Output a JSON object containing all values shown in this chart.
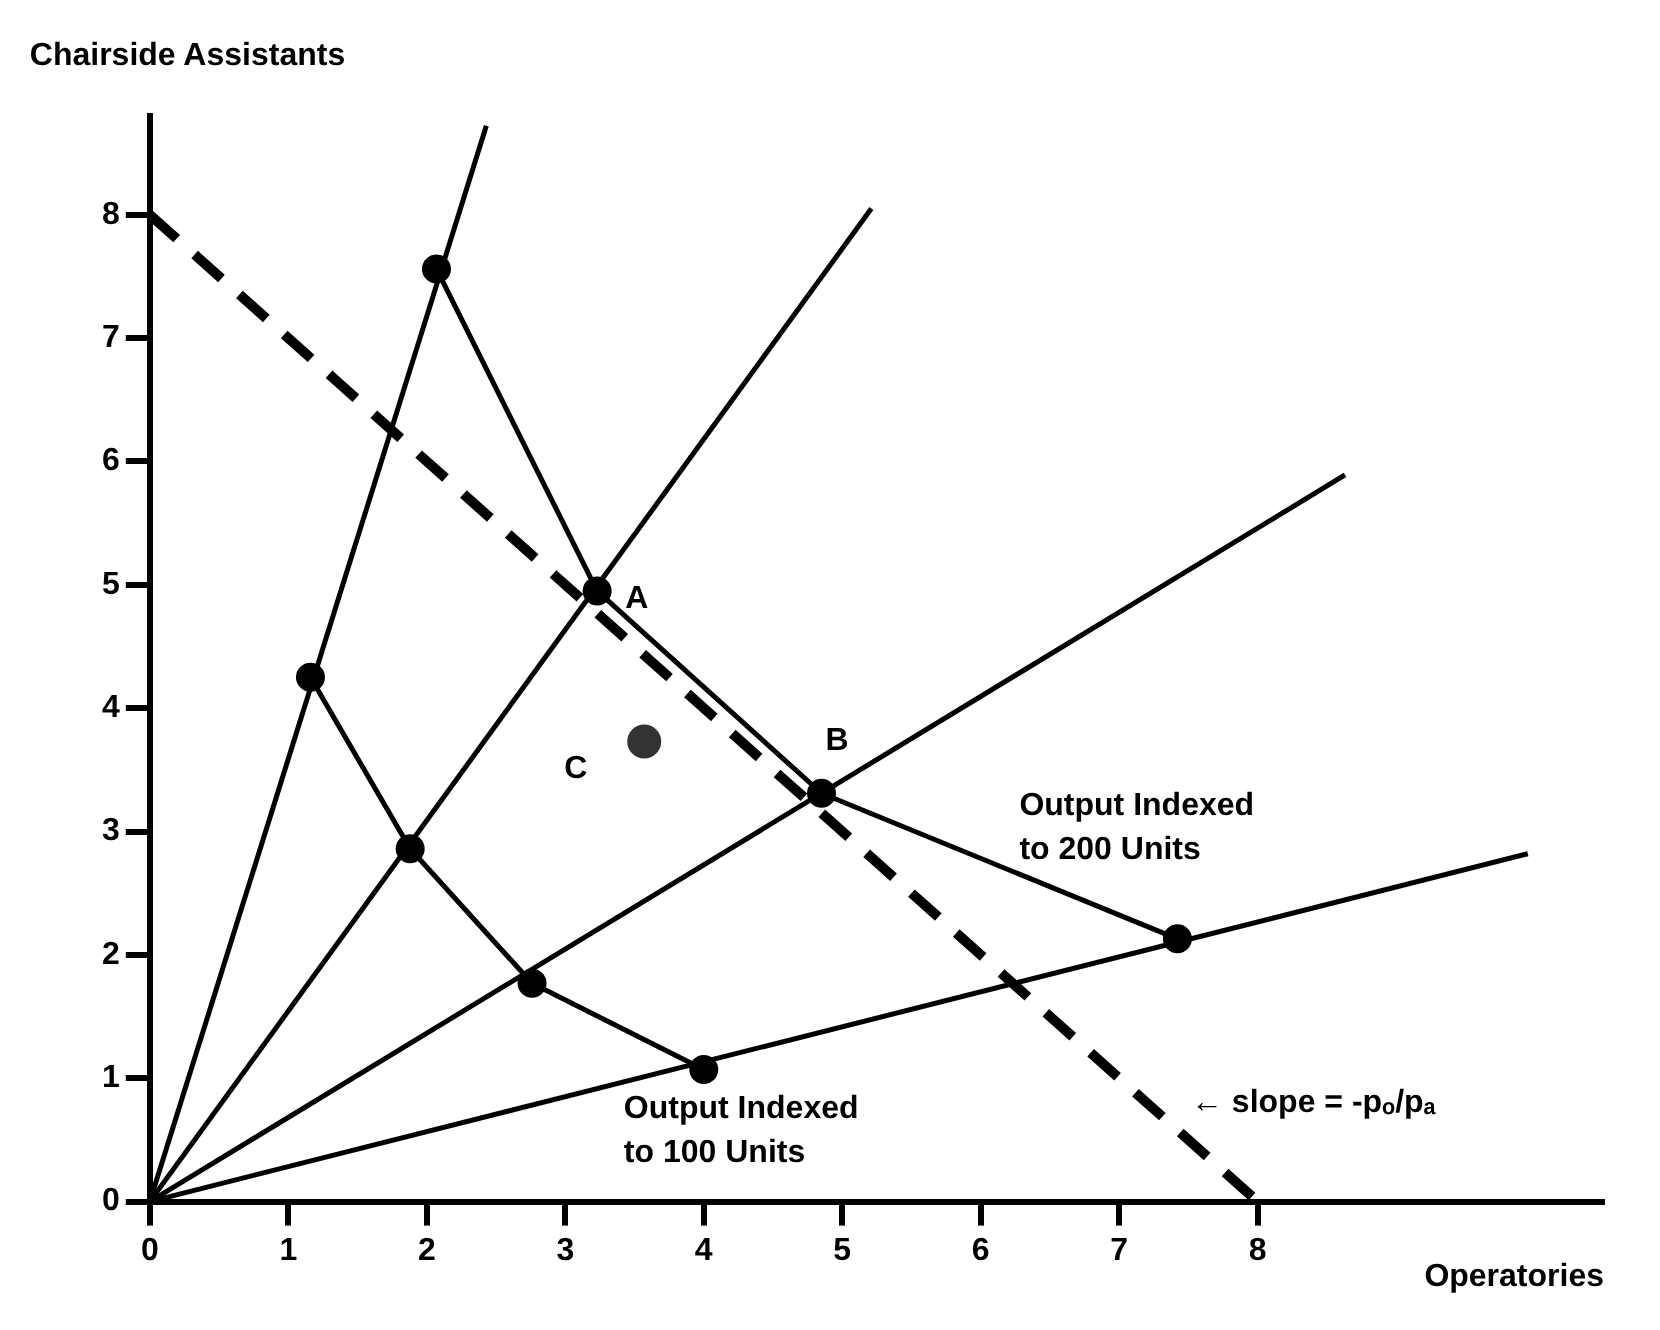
{
  "chart_data": {
    "type": "line",
    "xlabel": "Operatories",
    "ylabel": "Chairside Assistants",
    "xlim": [
      0,
      10.5
    ],
    "ylim": [
      0,
      8.8
    ],
    "xticks": [
      0,
      1,
      2,
      3,
      4,
      5,
      6,
      7,
      8
    ],
    "yticks": [
      0,
      1,
      2,
      3,
      4,
      5,
      6,
      7,
      8
    ],
    "grid": false,
    "legend": false,
    "annotations": [
      {
        "text": "A",
        "x": 3.23,
        "y": 4.95
      },
      {
        "text": "B",
        "x": 4.85,
        "y": 3.31
      },
      {
        "text": "C",
        "x": 3.57,
        "y": 3.73
      },
      "Output Indexed to 200 Units",
      "Output Indexed to 100 Units",
      {
        "text": "← slope = -pₒ/pₐ",
        "x": 7.2,
        "y": 0.8
      }
    ],
    "series": [
      {
        "x": [
          0,
          2.43
        ],
        "values": [
          0,
          8.72
        ],
        "color": "#000000",
        "marker": "none"
      },
      {
        "x": [
          0,
          5.21
        ],
        "values": [
          0,
          8.05
        ],
        "color": "#000000",
        "marker": "none"
      },
      {
        "x": [
          0,
          8.63
        ],
        "values": [
          0,
          5.89
        ],
        "color": "#000000",
        "marker": "none"
      },
      {
        "x": [
          0,
          9.95
        ],
        "values": [
          0,
          2.82
        ],
        "color": "#000000",
        "marker": "none"
      },
      {
        "x": [
          1.16,
          1.88,
          2.76,
          4.0
        ],
        "values": [
          4.25,
          2.86,
          1.77,
          1.07
        ],
        "color": "#000000",
        "marker": "circle"
      },
      {
        "x": [
          2.07,
          3.23,
          4.85,
          7.42
        ],
        "values": [
          7.56,
          4.95,
          3.31,
          2.13
        ],
        "color": "#000000",
        "marker": "circle"
      },
      {
        "type": "scatter",
        "x": [
          3.57
        ],
        "values": [
          3.73
        ],
        "color": "#333333",
        "marker": "circle"
      },
      {
        "x": [
          0,
          8
        ],
        "values": [
          8,
          0
        ],
        "color": "#000000",
        "marker": "none",
        "line_style": "dashed"
      }
    ]
  }
}
